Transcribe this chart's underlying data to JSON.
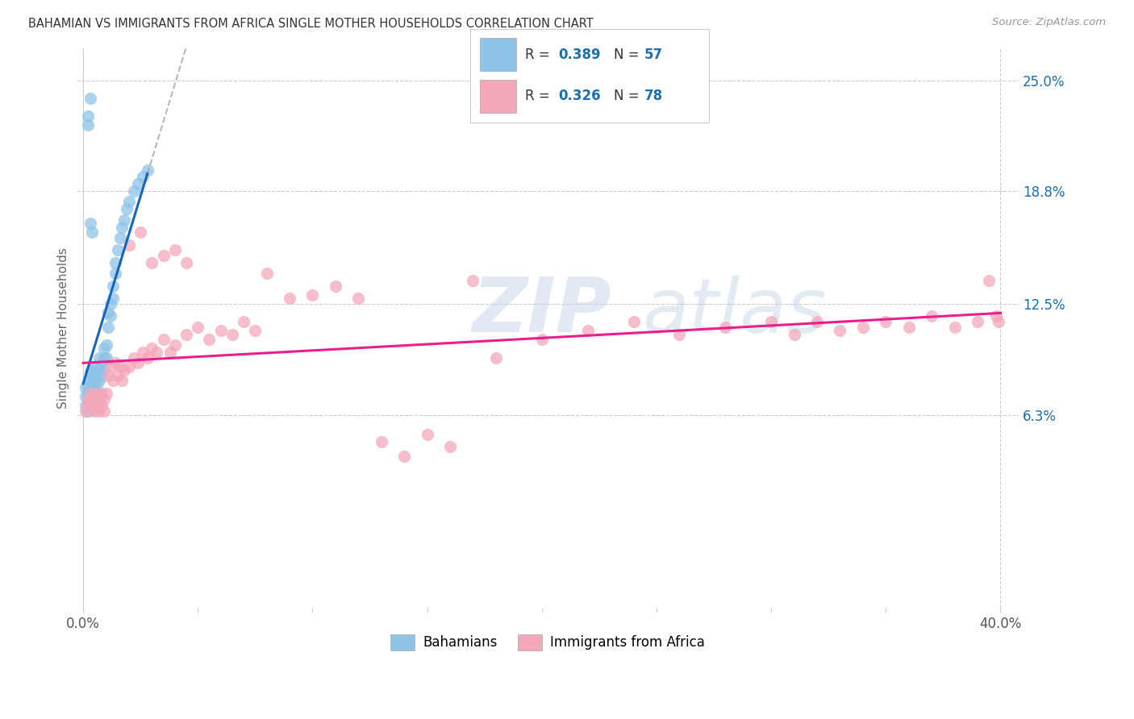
{
  "title": "BAHAMIAN VS IMMIGRANTS FROM AFRICA SINGLE MOTHER HOUSEHOLDS CORRELATION CHART",
  "source": "Source: ZipAtlas.com",
  "ylabel": "Single Mother Households",
  "ytick_vals": [
    0.063,
    0.125,
    0.188,
    0.25
  ],
  "ytick_labels": [
    "6.3%",
    "12.5%",
    "18.8%",
    "25.0%"
  ],
  "xmin": -0.003,
  "xmax": 0.408,
  "ymin": -0.045,
  "ymax": 0.268,
  "legend_R1": "R = 0.389",
  "legend_N1": "N = 57",
  "legend_R2": "R = 0.326",
  "legend_N2": "N = 78",
  "color_blue": "#8ec4e8",
  "color_pink": "#f4a7b9",
  "color_blue_line": "#1565c0",
  "color_pink_line": "#e91e8c",
  "color_grid": "#cccccc",
  "watermark_color": "#d0d8e8",
  "bah_x": [
    0.001,
    0.001,
    0.001,
    0.002,
    0.002,
    0.002,
    0.002,
    0.003,
    0.003,
    0.003,
    0.003,
    0.003,
    0.004,
    0.004,
    0.004,
    0.004,
    0.005,
    0.005,
    0.005,
    0.005,
    0.006,
    0.006,
    0.006,
    0.006,
    0.007,
    0.007,
    0.007,
    0.008,
    0.008,
    0.009,
    0.009,
    0.009,
    0.01,
    0.01,
    0.011,
    0.011,
    0.012,
    0.012,
    0.013,
    0.013,
    0.014,
    0.014,
    0.015,
    0.016,
    0.017,
    0.018,
    0.019,
    0.02,
    0.022,
    0.024,
    0.026,
    0.028,
    0.002,
    0.003,
    0.004,
    0.003,
    0.002
  ],
  "bah_y": [
    0.068,
    0.073,
    0.078,
    0.065,
    0.07,
    0.075,
    0.08,
    0.067,
    0.072,
    0.077,
    0.082,
    0.087,
    0.07,
    0.075,
    0.08,
    0.085,
    0.073,
    0.078,
    0.083,
    0.09,
    0.075,
    0.08,
    0.085,
    0.09,
    0.082,
    0.088,
    0.095,
    0.085,
    0.092,
    0.088,
    0.095,
    0.1,
    0.095,
    0.102,
    0.112,
    0.12,
    0.118,
    0.125,
    0.128,
    0.135,
    0.142,
    0.148,
    0.155,
    0.162,
    0.168,
    0.172,
    0.178,
    0.182,
    0.188,
    0.192,
    0.196,
    0.2,
    0.23,
    0.24,
    0.165,
    0.17,
    0.225
  ],
  "afr_x": [
    0.001,
    0.002,
    0.002,
    0.003,
    0.003,
    0.004,
    0.004,
    0.005,
    0.005,
    0.006,
    0.006,
    0.007,
    0.007,
    0.008,
    0.008,
    0.009,
    0.009,
    0.01,
    0.011,
    0.012,
    0.013,
    0.014,
    0.015,
    0.016,
    0.017,
    0.018,
    0.02,
    0.022,
    0.024,
    0.026,
    0.028,
    0.03,
    0.032,
    0.035,
    0.038,
    0.04,
    0.045,
    0.05,
    0.055,
    0.06,
    0.065,
    0.07,
    0.075,
    0.08,
    0.09,
    0.1,
    0.11,
    0.12,
    0.13,
    0.14,
    0.15,
    0.16,
    0.17,
    0.18,
    0.2,
    0.22,
    0.24,
    0.26,
    0.28,
    0.3,
    0.31,
    0.32,
    0.33,
    0.34,
    0.35,
    0.36,
    0.37,
    0.38,
    0.39,
    0.395,
    0.398,
    0.399,
    0.02,
    0.025,
    0.03,
    0.035,
    0.04,
    0.045
  ],
  "afr_y": [
    0.065,
    0.068,
    0.072,
    0.07,
    0.075,
    0.068,
    0.073,
    0.065,
    0.072,
    0.068,
    0.075,
    0.065,
    0.072,
    0.068,
    0.075,
    0.065,
    0.072,
    0.075,
    0.085,
    0.09,
    0.082,
    0.092,
    0.085,
    0.09,
    0.082,
    0.088,
    0.09,
    0.095,
    0.092,
    0.098,
    0.095,
    0.1,
    0.098,
    0.105,
    0.098,
    0.102,
    0.108,
    0.112,
    0.105,
    0.11,
    0.108,
    0.115,
    0.11,
    0.142,
    0.128,
    0.13,
    0.135,
    0.128,
    0.048,
    0.04,
    0.052,
    0.045,
    0.138,
    0.095,
    0.105,
    0.11,
    0.115,
    0.108,
    0.112,
    0.115,
    0.108,
    0.115,
    0.11,
    0.112,
    0.115,
    0.112,
    0.118,
    0.112,
    0.115,
    0.138,
    0.118,
    0.115,
    0.158,
    0.165,
    0.148,
    0.152,
    0.155,
    0.148
  ]
}
